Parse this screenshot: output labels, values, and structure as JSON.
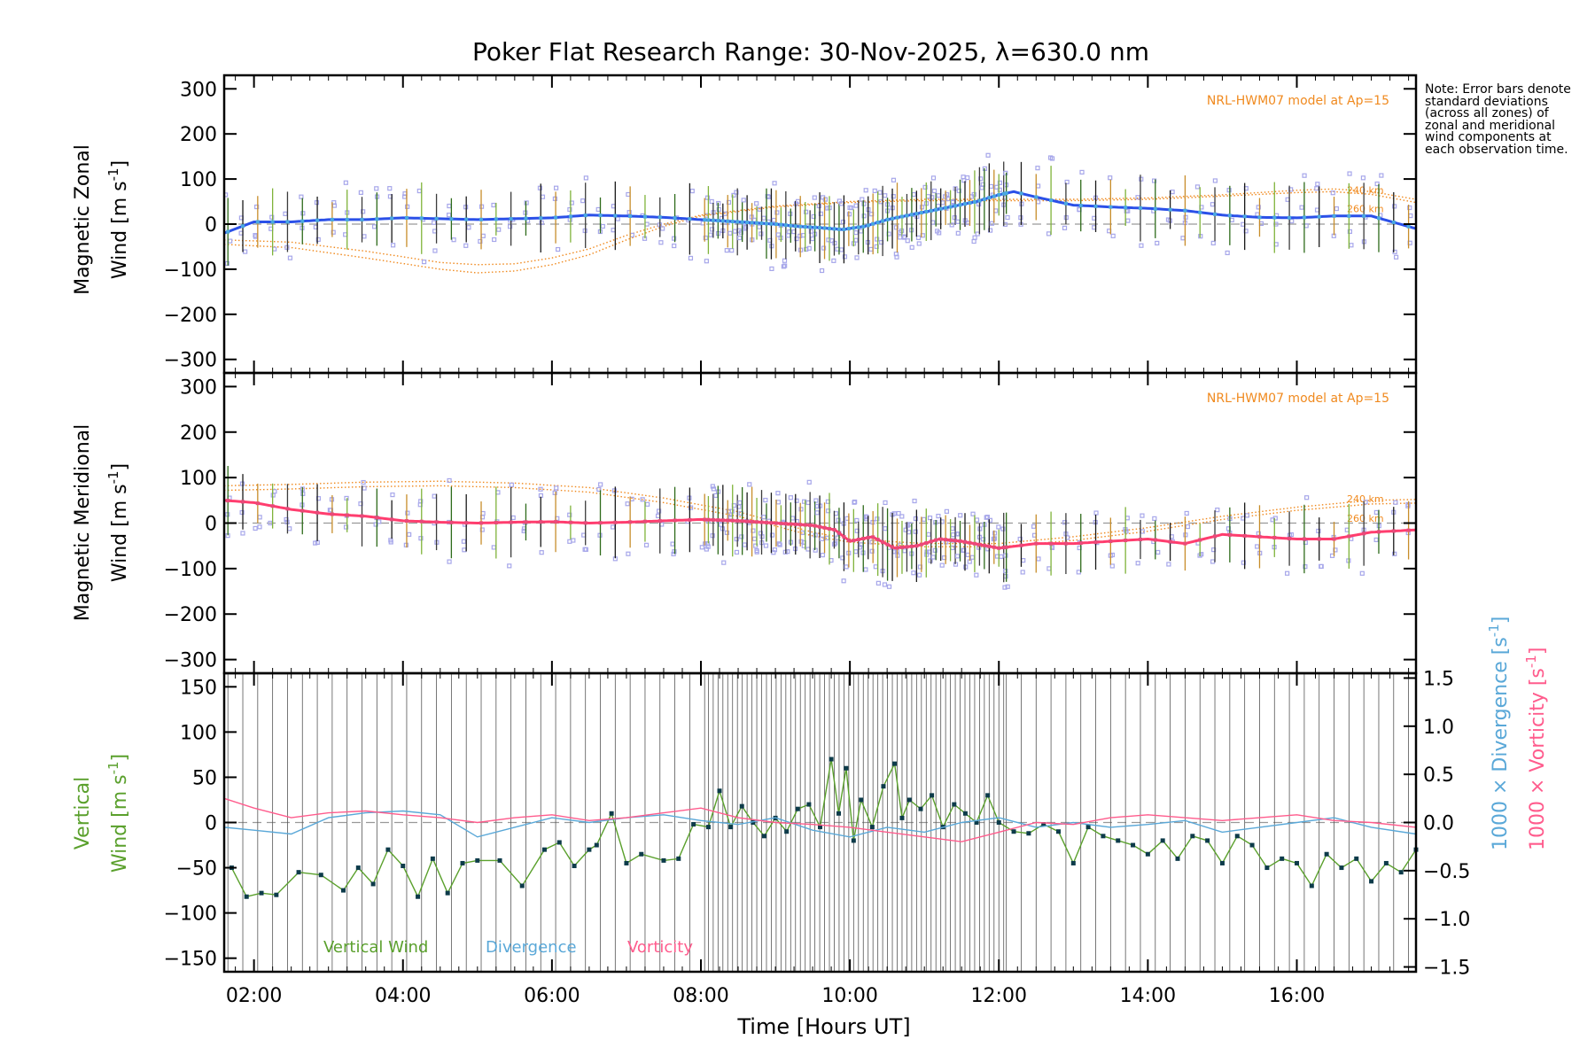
{
  "title": "Poker Flat Research Range: 30-Nov-2025, λ=630.0 nm",
  "note": "Note: Error bars denote standard deviations (across all zones) of zonal and meridional wind components at each observation time.",
  "colors": {
    "zonal": "#2b50e8",
    "zonal_light": "#4aa8e0",
    "meridional": "#ff3d6e",
    "model": "#f08a1f",
    "vertical": "#5aa02c",
    "divergence": "#5aa8d8",
    "vorticity": "#ff5c8d",
    "zone_marker": "#a7a7ea"
  },
  "chart_data": [
    {
      "type": "line",
      "panel": "zonal",
      "ylabel_line1": "Magnetic Zonal",
      "ylabel_line2": "Wind [m s",
      "ylabel_sup": "-1",
      "ylabel_close": "]",
      "xlim": [
        1.6,
        17.6
      ],
      "ylim": [
        -330,
        330
      ],
      "yticks": [
        300,
        200,
        100,
        0,
        -100,
        -200,
        -300
      ],
      "yticklabels": [
        "300",
        "200",
        "100",
        "0",
        "−100",
        "−200",
        "−300"
      ],
      "model_label": "NRL-HWM07 model at Ap=15",
      "model_alt_labels": [
        "240 km",
        "260 km"
      ],
      "series": [
        {
          "name": "Zonal wind",
          "x": [
            1.6,
            2.0,
            2.5,
            3.0,
            3.5,
            4.0,
            4.5,
            5.0,
            5.5,
            6.0,
            6.5,
            7.0,
            7.5,
            8.0,
            8.5,
            9.0,
            9.3,
            9.6,
            9.9,
            10.2,
            10.5,
            10.8,
            11.1,
            11.4,
            11.7,
            12.0,
            12.2,
            12.5,
            13.0,
            13.5,
            14.0,
            14.5,
            15.0,
            15.5,
            16.0,
            16.5,
            17.0,
            17.6
          ],
          "values": [
            -20,
            5,
            5,
            10,
            10,
            14,
            12,
            10,
            12,
            14,
            20,
            18,
            15,
            10,
            5,
            0,
            -5,
            -8,
            -12,
            -5,
            10,
            20,
            30,
            40,
            50,
            65,
            72,
            60,
            42,
            38,
            35,
            30,
            20,
            15,
            14,
            18,
            18,
            -10
          ]
        }
      ],
      "models": [
        {
          "name": "HWM07 240 km",
          "x": [
            1.6,
            2.5,
            3.5,
            4.5,
            5.0,
            5.5,
            6.0,
            6.5,
            7.0,
            7.5,
            8.0,
            9.0,
            10.0,
            11.0,
            12.0,
            13.0,
            14.0,
            15.0,
            16.0,
            16.5,
            17.0,
            17.6
          ],
          "values": [
            -35,
            -40,
            -60,
            -85,
            -90,
            -88,
            -75,
            -55,
            -25,
            0,
            20,
            40,
            50,
            55,
            55,
            55,
            58,
            65,
            75,
            78,
            72,
            55
          ]
        },
        {
          "name": "HWM07 260 km",
          "x": [
            1.6,
            2.5,
            3.5,
            4.5,
            5.0,
            5.5,
            6.0,
            6.5,
            7.0,
            7.5,
            8.0,
            9.0,
            10.0,
            11.0,
            12.0,
            13.0,
            14.0,
            15.0,
            16.0,
            16.5,
            17.0,
            17.6
          ],
          "values": [
            -45,
            -52,
            -75,
            -100,
            -108,
            -104,
            -90,
            -68,
            -35,
            -5,
            18,
            38,
            48,
            52,
            52,
            52,
            55,
            62,
            70,
            72,
            66,
            48
          ]
        }
      ]
    },
    {
      "type": "line",
      "panel": "meridional",
      "ylabel_line1": "Magnetic Meridional",
      "ylabel_line2": "Wind [m s",
      "ylabel_sup": "-1",
      "ylabel_close": "]",
      "xlim": [
        1.6,
        17.6
      ],
      "ylim": [
        -330,
        330
      ],
      "yticks": [
        300,
        200,
        100,
        0,
        -100,
        -200,
        -300
      ],
      "yticklabels": [
        "300",
        "200",
        "100",
        "0",
        "−100",
        "−200",
        "−300"
      ],
      "model_label": "NRL-HWM07 model at Ap=15",
      "model_alt_labels": [
        "240 km",
        "260 km"
      ],
      "series": [
        {
          "name": "Meridional wind",
          "x": [
            1.6,
            2.0,
            2.5,
            3.0,
            3.5,
            4.0,
            4.5,
            5.0,
            5.5,
            6.0,
            6.5,
            7.0,
            7.5,
            8.0,
            8.5,
            9.0,
            9.5,
            9.8,
            10.0,
            10.3,
            10.6,
            10.9,
            11.2,
            11.5,
            12.0,
            12.5,
            13.0,
            13.5,
            14.0,
            14.5,
            15.0,
            15.5,
            16.0,
            16.5,
            17.0,
            17.6
          ],
          "values": [
            50,
            45,
            30,
            20,
            15,
            5,
            2,
            0,
            2,
            3,
            0,
            2,
            5,
            8,
            5,
            0,
            -5,
            -15,
            -40,
            -30,
            -55,
            -50,
            -35,
            -40,
            -55,
            -45,
            -45,
            -40,
            -35,
            -45,
            -25,
            -30,
            -35,
            -35,
            -20,
            -15
          ]
        }
      ],
      "models": [
        {
          "name": "HWM07 240 km",
          "x": [
            1.6,
            2.5,
            3.5,
            4.5,
            5.5,
            6.5,
            7.5,
            8.5,
            9.5,
            10.0,
            11.0,
            12.0,
            13.0,
            14.0,
            15.0,
            16.0,
            17.0,
            17.6
          ],
          "values": [
            82,
            85,
            90,
            92,
            88,
            78,
            55,
            25,
            -20,
            -35,
            -45,
            -45,
            -30,
            -10,
            15,
            35,
            50,
            52
          ]
        },
        {
          "name": "HWM07 260 km",
          "x": [
            1.6,
            2.5,
            3.5,
            4.5,
            5.5,
            6.5,
            7.5,
            8.5,
            9.5,
            10.0,
            11.0,
            12.0,
            13.0,
            14.0,
            15.0,
            16.0,
            17.0,
            17.6
          ],
          "values": [
            72,
            75,
            80,
            82,
            78,
            68,
            45,
            15,
            -28,
            -42,
            -52,
            -52,
            -38,
            -18,
            8,
            28,
            42,
            44
          ]
        }
      ]
    },
    {
      "type": "line",
      "panel": "vertical",
      "ylabel_line1": "Vertical",
      "ylabel_line2": "Wind [m s",
      "ylabel_sup": "-1",
      "ylabel_close": "]",
      "y2label_a": "1000 × Divergence [s",
      "y2label_b": "1000 × Vorticity [s",
      "y2label_sup": "-1",
      "y2label_close": "]",
      "xlim": [
        1.6,
        17.6
      ],
      "ylim": [
        -165,
        165
      ],
      "y2lim": [
        -1.55,
        1.55
      ],
      "yticks": [
        150,
        100,
        50,
        0,
        -50,
        -100,
        -150
      ],
      "yticklabels": [
        "150",
        "100",
        "50",
        "0",
        "−50",
        "−100",
        "−150"
      ],
      "y2ticks": [
        1.5,
        1.0,
        0.5,
        0.0,
        -0.5,
        -1.0,
        -1.5
      ],
      "y2ticklabels": [
        "1.5",
        "1.0",
        "0.5",
        "0.0",
        "−0.5",
        "−1.0",
        "−1.5"
      ],
      "xticks": [
        2,
        4,
        6,
        8,
        10,
        12,
        14,
        16
      ],
      "xticklabels": [
        "02:00",
        "04:00",
        "06:00",
        "08:00",
        "10:00",
        "12:00",
        "14:00",
        "16:00"
      ],
      "xlabel": "Time [Hours UT]",
      "legend": [
        "Vertical Wind",
        "Divergence",
        "Vorticity"
      ],
      "series": [
        {
          "name": "Vertical Wind",
          "axis": "left",
          "x": [
            1.7,
            1.9,
            2.1,
            2.3,
            2.6,
            2.9,
            3.2,
            3.4,
            3.6,
            3.8,
            4.0,
            4.2,
            4.4,
            4.6,
            4.8,
            5.0,
            5.3,
            5.6,
            5.9,
            6.1,
            6.3,
            6.5,
            6.6,
            6.8,
            7.0,
            7.2,
            7.5,
            7.7,
            7.9,
            8.1,
            8.25,
            8.4,
            8.55,
            8.7,
            8.85,
            9.0,
            9.15,
            9.3,
            9.45,
            9.6,
            9.75,
            9.85,
            9.95,
            10.05,
            10.15,
            10.3,
            10.45,
            10.6,
            10.7,
            10.8,
            10.95,
            11.1,
            11.25,
            11.4,
            11.55,
            11.7,
            11.85,
            12.0,
            12.2,
            12.4,
            12.6,
            12.8,
            13.0,
            13.2,
            13.4,
            13.6,
            13.8,
            14.0,
            14.2,
            14.4,
            14.6,
            14.8,
            15.0,
            15.2,
            15.4,
            15.6,
            15.8,
            16.0,
            16.2,
            16.4,
            16.6,
            16.8,
            17.0,
            17.2,
            17.4,
            17.6
          ],
          "values": [
            -50,
            -82,
            -78,
            -80,
            -55,
            -58,
            -75,
            -50,
            -68,
            -30,
            -48,
            -82,
            -40,
            -78,
            -45,
            -42,
            -42,
            -70,
            -30,
            -22,
            -48,
            -30,
            -25,
            10,
            -45,
            -35,
            -42,
            -40,
            -2,
            -5,
            35,
            -5,
            18,
            0,
            -15,
            5,
            -10,
            15,
            20,
            -5,
            70,
            10,
            60,
            -20,
            25,
            -5,
            40,
            65,
            5,
            25,
            15,
            30,
            -5,
            20,
            10,
            0,
            30,
            0,
            -10,
            -12,
            -2,
            -10,
            -45,
            -5,
            -15,
            -20,
            -25,
            -35,
            -20,
            -40,
            -15,
            -20,
            -45,
            -15,
            -25,
            -50,
            -40,
            -45,
            -70,
            -35,
            -50,
            -40,
            -65,
            -45,
            -55,
            -30
          ]
        },
        {
          "name": "Divergence",
          "axis": "right",
          "x": [
            1.6,
            2.0,
            2.5,
            3.0,
            3.5,
            4.0,
            4.5,
            5.0,
            5.5,
            6.0,
            6.5,
            7.0,
            7.5,
            8.0,
            8.5,
            9.0,
            9.5,
            10.0,
            10.5,
            11.0,
            11.5,
            12.0,
            12.5,
            13.0,
            13.5,
            14.0,
            14.5,
            15.0,
            15.5,
            16.0,
            16.5,
            17.0,
            17.6
          ],
          "values": [
            -0.05,
            -0.08,
            -0.12,
            0.05,
            0.1,
            0.12,
            0.08,
            -0.15,
            -0.05,
            0.05,
            0.0,
            0.05,
            0.08,
            0.02,
            -0.02,
            0.05,
            -0.08,
            -0.15,
            -0.05,
            -0.1,
            0.0,
            0.05,
            -0.05,
            0.0,
            -0.05,
            -0.02,
            0.02,
            -0.1,
            -0.05,
            0.0,
            0.05,
            -0.05,
            -0.12
          ]
        },
        {
          "name": "Vorticity",
          "axis": "right",
          "x": [
            1.6,
            2.0,
            2.5,
            3.0,
            3.5,
            4.0,
            4.5,
            5.0,
            5.5,
            6.0,
            6.5,
            7.0,
            7.5,
            8.0,
            8.5,
            9.0,
            9.5,
            10.0,
            10.5,
            11.0,
            11.5,
            12.0,
            12.5,
            13.0,
            13.5,
            14.0,
            14.5,
            15.0,
            15.5,
            16.0,
            16.5,
            17.0,
            17.6
          ],
          "values": [
            0.25,
            0.15,
            0.05,
            0.1,
            0.12,
            0.08,
            0.05,
            0.0,
            0.05,
            0.08,
            0.02,
            0.05,
            0.1,
            0.15,
            0.05,
            0.0,
            -0.02,
            -0.05,
            -0.1,
            -0.15,
            -0.2,
            -0.1,
            0.0,
            -0.02,
            0.05,
            0.08,
            0.05,
            0.02,
            0.05,
            0.08,
            0.02,
            0.0,
            -0.05
          ]
        }
      ]
    }
  ]
}
